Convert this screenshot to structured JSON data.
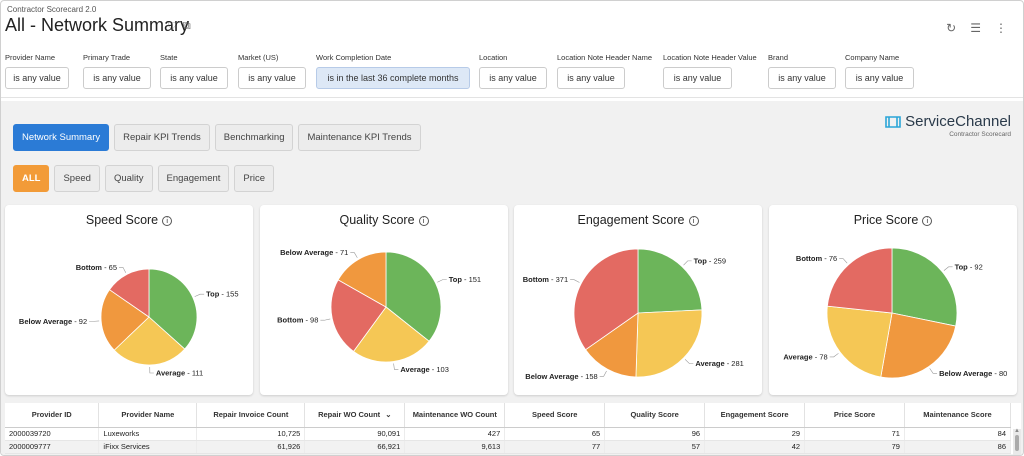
{
  "app_title": "Contractor Scorecard 2.0",
  "page_title": "All - Network Summary",
  "filters": [
    {
      "label": "Provider Name",
      "value": "is any value",
      "active": false
    },
    {
      "label": "Primary Trade",
      "value": "is any value",
      "active": false
    },
    {
      "label": "State",
      "value": "is any value",
      "active": false
    },
    {
      "label": "Market (US)",
      "value": "is any value",
      "active": false
    },
    {
      "label": "Work Completion Date",
      "value": "is in the last 36 complete months",
      "active": true
    },
    {
      "label": "Location",
      "value": "is any value",
      "active": false
    },
    {
      "label": "Location Note Header Name",
      "value": "is any value",
      "active": false
    },
    {
      "label": "Location Note Header Value",
      "value": "is any value",
      "active": false
    },
    {
      "label": "Brand",
      "value": "is any value",
      "active": false
    },
    {
      "label": "Company Name",
      "value": "is any value",
      "active": false
    }
  ],
  "tabs": [
    "Network Summary",
    "Repair KPI Trends",
    "Benchmarking",
    "Maintenance KPI Trends"
  ],
  "active_tab": 0,
  "segments": [
    "ALL",
    "Speed",
    "Quality",
    "Engagement",
    "Price"
  ],
  "active_segment": 0,
  "logo": {
    "brand": "ServiceChannel",
    "sub": "Contractor Scorecard"
  },
  "info_glyph": "i",
  "colors": {
    "top": "#6cb55a",
    "average": "#f5c755",
    "below_average": "#f0983e",
    "bottom": "#e36a62",
    "accent_blue": "#2b7bd6",
    "accent_orange": "#f29b38"
  },
  "chart_data": [
    {
      "type": "pie",
      "title": "Speed Score",
      "slices": [
        {
          "label": "Top",
          "value": 155
        },
        {
          "label": "Average",
          "value": 111
        },
        {
          "label": "Below Average",
          "value": 92
        },
        {
          "label": "Bottom",
          "value": 65
        }
      ]
    },
    {
      "type": "pie",
      "title": "Quality Score",
      "slices": [
        {
          "label": "Top",
          "value": 151
        },
        {
          "label": "Average",
          "value": 103
        },
        {
          "label": "Bottom",
          "value": 98
        },
        {
          "label": "Below Average",
          "value": 71
        }
      ]
    },
    {
      "type": "pie",
      "title": "Engagement Score",
      "slices": [
        {
          "label": "Top",
          "value": 259
        },
        {
          "label": "Average",
          "value": 281
        },
        {
          "label": "Below Average",
          "value": 158
        },
        {
          "label": "Bottom",
          "value": 371
        }
      ]
    },
    {
      "type": "pie",
      "title": "Price Score",
      "slices": [
        {
          "label": "Top",
          "value": 92
        },
        {
          "label": "Below Average",
          "value": 80
        },
        {
          "label": "Average",
          "value": 78
        },
        {
          "label": "Bottom",
          "value": 76
        }
      ]
    }
  ],
  "table": {
    "columns": [
      "Provider ID",
      "Provider Name",
      "Repair Invoice Count",
      "Repair WO Count",
      "Maintenance WO Count",
      "Speed Score",
      "Quality Score",
      "Engagement Score",
      "Price Score",
      "Maintenance Score"
    ],
    "sort_indicator": "⌄",
    "rows": [
      [
        "2000039720",
        "Luxeworks",
        "10,725",
        "90,091",
        "427",
        "65",
        "96",
        "29",
        "71",
        "84"
      ],
      [
        "2000009777",
        "iFixx Services",
        "61,926",
        "66,921",
        "9,613",
        "77",
        "57",
        "42",
        "79",
        "86"
      ]
    ]
  }
}
